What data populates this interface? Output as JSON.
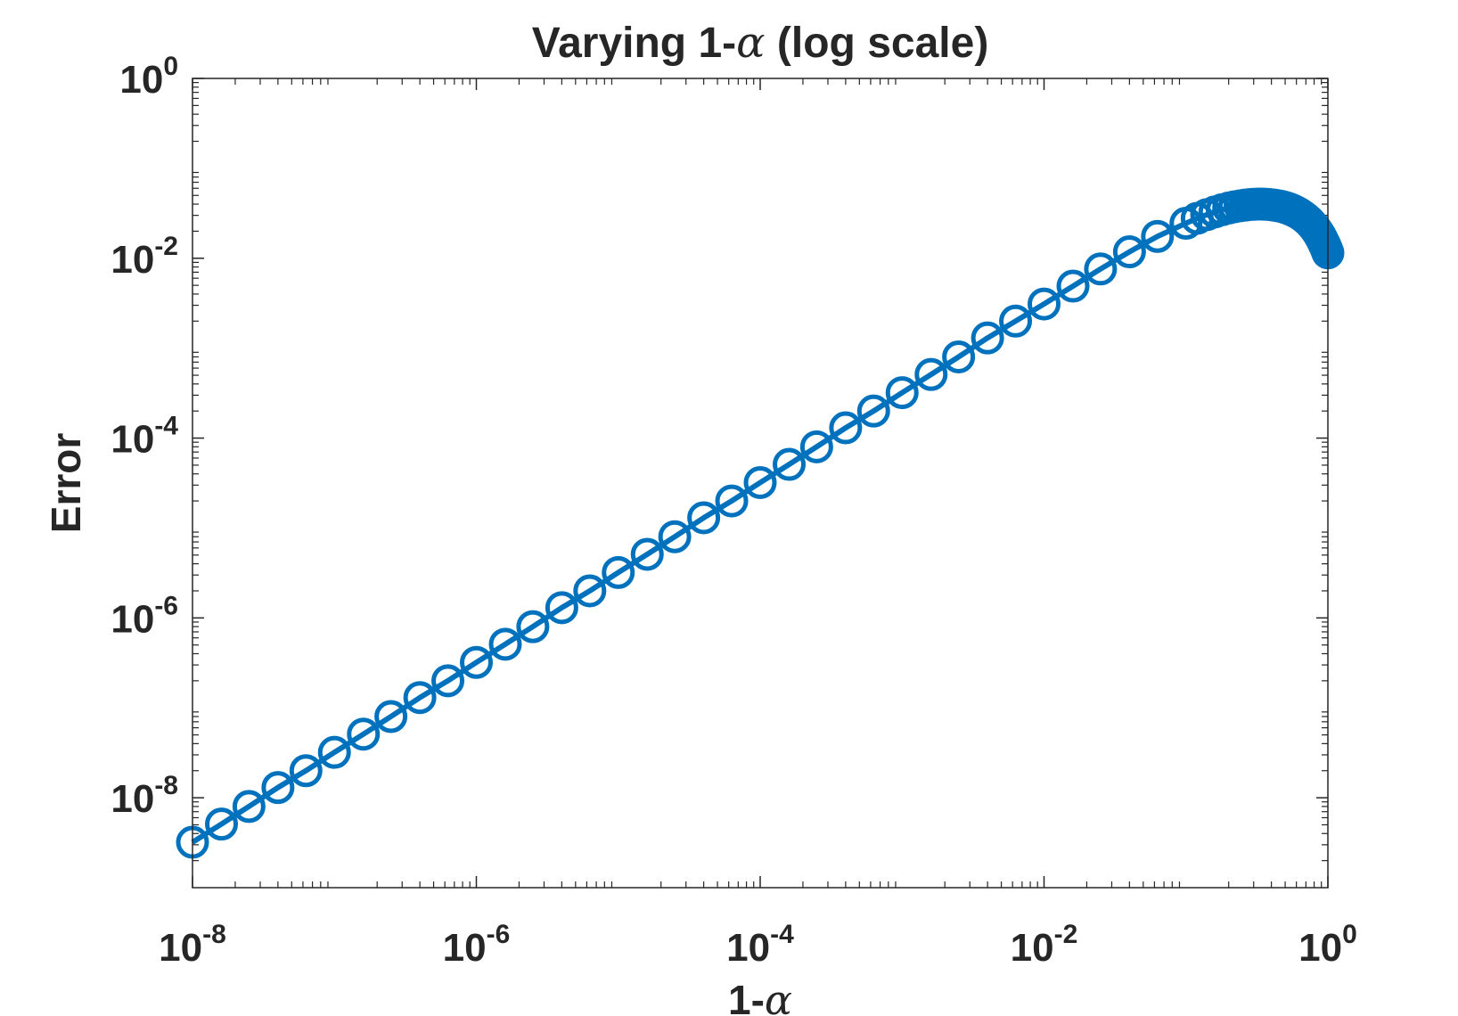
{
  "chart_data": {
    "type": "line",
    "title": {
      "prefix": "Varying 1-",
      "symbol": "α",
      "suffix": " (log scale)"
    },
    "xlabel": {
      "prefix": "1-",
      "symbol": "α"
    },
    "ylabel": "Error",
    "x_scale": "log",
    "y_scale": "log",
    "xlim": [
      1e-08,
      1
    ],
    "ylim": [
      1e-09,
      1
    ],
    "grid": false,
    "x_ticks": [
      {
        "value": 1e-08,
        "base": "10",
        "exp": "-8"
      },
      {
        "value": 1e-06,
        "base": "10",
        "exp": "-6"
      },
      {
        "value": 0.0001,
        "base": "10",
        "exp": "-4"
      },
      {
        "value": 0.01,
        "base": "10",
        "exp": "-2"
      },
      {
        "value": 1,
        "base": "10",
        "exp": "0"
      }
    ],
    "y_ticks": [
      {
        "value": 1,
        "base": "10",
        "exp": "0"
      },
      {
        "value": 0.01,
        "base": "10",
        "exp": "-2"
      },
      {
        "value": 0.0001,
        "base": "10",
        "exp": "-4"
      },
      {
        "value": 1e-06,
        "base": "10",
        "exp": "-6"
      },
      {
        "value": 1e-08,
        "base": "10",
        "exp": "-8"
      }
    ],
    "series": [
      {
        "color": "#0072BD",
        "marker": "circle",
        "x": [
          1e-08,
          1.6e-08,
          2.5e-08,
          4e-08,
          6.3e-08,
          1e-07,
          1.6e-07,
          2.5e-07,
          4e-07,
          6.3e-07,
          1e-06,
          1.6e-06,
          2.5e-06,
          4e-06,
          6.3e-06,
          1e-05,
          1.6e-05,
          2.5e-05,
          4e-05,
          6.3e-05,
          0.0001,
          0.00016,
          0.00025,
          0.0004,
          0.00063,
          0.001,
          0.0016,
          0.0025,
          0.004,
          0.0063,
          0.01,
          0.016,
          0.025,
          0.04,
          0.063,
          0.1,
          0.12,
          0.14,
          0.16,
          0.18,
          0.2,
          0.22,
          0.24,
          0.26,
          0.28,
          0.3,
          0.32,
          0.34,
          0.36,
          0.38,
          0.4,
          0.42,
          0.44,
          0.46,
          0.48,
          0.5,
          0.52,
          0.54,
          0.56,
          0.58,
          0.6,
          0.62,
          0.64,
          0.66,
          0.68,
          0.7,
          0.72,
          0.74,
          0.76,
          0.78,
          0.8,
          0.82,
          0.84,
          0.86,
          0.88,
          0.9,
          0.92,
          0.94,
          0.96,
          0.98,
          1.0
        ],
        "y": [
          3.2e-09,
          5.1e-09,
          8e-09,
          1.3e-08,
          2e-08,
          3.2e-08,
          5.1e-08,
          8e-08,
          1.3e-07,
          2e-07,
          3.2e-07,
          5.1e-07,
          8e-07,
          1.3e-06,
          2e-06,
          3.2e-06,
          5.1e-06,
          8e-06,
          1.3e-05,
          2e-05,
          3.2e-05,
          5.1e-05,
          8e-05,
          0.00013,
          0.0002,
          0.00032,
          0.00051,
          0.0008,
          0.0013,
          0.002,
          0.0031,
          0.0049,
          0.0076,
          0.0118,
          0.0175,
          0.0245,
          0.0278,
          0.0305,
          0.0328,
          0.0347,
          0.0362,
          0.0374,
          0.0383,
          0.039,
          0.0395,
          0.0398,
          0.04,
          0.04,
          0.0399,
          0.0397,
          0.0394,
          0.039,
          0.0385,
          0.038,
          0.0374,
          0.0367,
          0.036,
          0.0352,
          0.0344,
          0.0335,
          0.0326,
          0.0317,
          0.0307,
          0.0297,
          0.0287,
          0.0276,
          0.0266,
          0.0255,
          0.0244,
          0.0233,
          0.0222,
          0.0211,
          0.02,
          0.0189,
          0.0178,
          0.0167,
          0.0156,
          0.0145,
          0.0135,
          0.0125,
          0.0115
        ]
      }
    ]
  }
}
